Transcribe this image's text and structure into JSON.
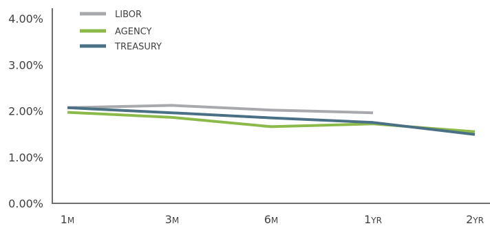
{
  "chart_data": {
    "type": "line",
    "title": "",
    "xlabel": "",
    "ylabel": "",
    "categories": [
      {
        "main": "1",
        "suffix": "M"
      },
      {
        "main": "3",
        "suffix": "M"
      },
      {
        "main": "6",
        "suffix": "M"
      },
      {
        "main": "1",
        "suffix": "YR"
      },
      {
        "main": "2",
        "suffix": "YR"
      }
    ],
    "ylim": [
      0,
      4
    ],
    "yticks": [
      {
        "value": 0,
        "label": "0.00%"
      },
      {
        "value": 1,
        "label": "1.00%"
      },
      {
        "value": 2,
        "label": "2.00%"
      },
      {
        "value": 3,
        "label": "3.00%"
      },
      {
        "value": 4,
        "label": "4.00%"
      }
    ],
    "grid": false,
    "legend_position": "top-left",
    "series": [
      {
        "name": "LIBOR",
        "color": "#a7a9ac",
        "values": [
          2.07,
          2.12,
          2.02,
          1.96,
          null
        ]
      },
      {
        "name": "AGENCY",
        "color": "#8cba4a",
        "values": [
          1.97,
          1.86,
          1.66,
          1.72,
          1.55
        ]
      },
      {
        "name": "TREASURY",
        "color": "#4a7086",
        "values": [
          2.07,
          1.96,
          1.85,
          1.75,
          1.49
        ]
      }
    ]
  }
}
